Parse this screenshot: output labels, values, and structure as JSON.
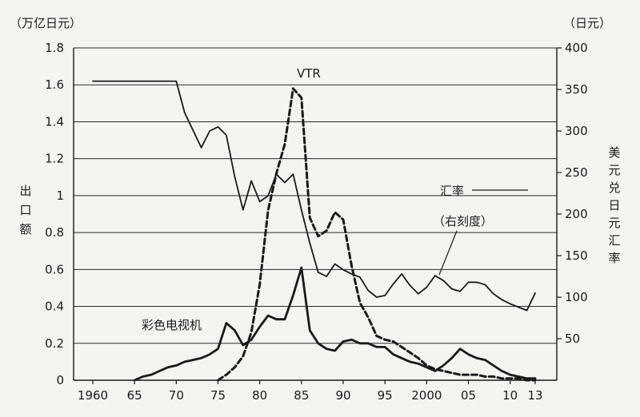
{
  "chart_data": {
    "type": "line",
    "left_unit": "（万亿日元）",
    "right_unit": "（日元）",
    "left_title": "出口额",
    "right_title": "美元兑日元汇率",
    "x_ticks": [
      "1960",
      "65",
      "70",
      "75",
      "80",
      "85",
      "90",
      "95",
      "2000",
      "05",
      "10",
      "13"
    ],
    "x_range": [
      1960,
      2013
    ],
    "left_ticks": [
      "0",
      "0.2",
      "0.4",
      "0.6",
      "0.8",
      "1",
      "1.2",
      "1.4",
      "1.6",
      "1.8"
    ],
    "left_range": [
      0,
      1.8
    ],
    "right_ticks": [
      "50",
      "100",
      "150",
      "200",
      "250",
      "300",
      "350",
      "400"
    ],
    "right_range": [
      0,
      400
    ],
    "grid": true,
    "annotations": {
      "vtr": "VTR",
      "rate": "汇率",
      "rate_scale": "（右刻度）",
      "tv": "彩色电视机"
    },
    "series": [
      {
        "name": "汇率",
        "axis": "right",
        "style": "solid",
        "color": "#1a1a1a",
        "x": [
          1960,
          1970,
          1971,
          1973,
          1974,
          1975,
          1976,
          1977,
          1978,
          1979,
          1980,
          1981,
          1982,
          1983,
          1984,
          1985,
          1986,
          1987,
          1988,
          1989,
          1990,
          1991,
          1992,
          1993,
          1994,
          1995,
          1996,
          1997,
          1998,
          1999,
          2000,
          2001,
          2002,
          2003,
          2004,
          2005,
          2006,
          2007,
          2008,
          2009,
          2010,
          2011,
          2012,
          2013
        ],
        "y": [
          360,
          360,
          322,
          280,
          300,
          305,
          295,
          245,
          205,
          240,
          215,
          222,
          248,
          238,
          248,
          205,
          165,
          130,
          125,
          140,
          133,
          128,
          124,
          108,
          100,
          102,
          116,
          128,
          114,
          104,
          112,
          126,
          120,
          110,
          107,
          118,
          118,
          115,
          104,
          97,
          92,
          88,
          84,
          105
        ]
      },
      {
        "name": "VTR",
        "axis": "left",
        "style": "dashed",
        "color": "#1a1a1a",
        "x": [
          1975,
          1976,
          1977,
          1978,
          1979,
          1980,
          1981,
          1982,
          1983,
          1984,
          1985,
          1986,
          1987,
          1988,
          1989,
          1990,
          1991,
          1992,
          1993,
          1994,
          1995,
          1996,
          1997,
          1998,
          1999,
          2000,
          2001,
          2002,
          2003,
          2004,
          2005,
          2006,
          2007,
          2008,
          2009,
          2010,
          2011,
          2012,
          2013
        ],
        "y": [
          0.0,
          0.03,
          0.07,
          0.13,
          0.26,
          0.52,
          0.92,
          1.12,
          1.28,
          1.58,
          1.53,
          0.88,
          0.78,
          0.81,
          0.91,
          0.87,
          0.62,
          0.42,
          0.34,
          0.24,
          0.22,
          0.21,
          0.18,
          0.15,
          0.12,
          0.08,
          0.06,
          0.05,
          0.04,
          0.03,
          0.03,
          0.03,
          0.02,
          0.02,
          0.01,
          0.01,
          0.01,
          0.0,
          0.0
        ]
      },
      {
        "name": "彩色电视机",
        "axis": "left",
        "style": "solid",
        "color": "#1a1a1a",
        "x": [
          1965,
          1966,
          1967,
          1968,
          1969,
          1970,
          1971,
          1972,
          1973,
          1974,
          1975,
          1976,
          1977,
          1978,
          1979,
          1980,
          1981,
          1982,
          1983,
          1984,
          1985,
          1986,
          1987,
          1988,
          1989,
          1990,
          1991,
          1992,
          1993,
          1994,
          1995,
          1996,
          1997,
          1998,
          1999,
          2000,
          2001,
          2002,
          2003,
          2004,
          2005,
          2006,
          2007,
          2008,
          2009,
          2010,
          2011,
          2012,
          2013
        ],
        "y": [
          0.0,
          0.02,
          0.03,
          0.05,
          0.07,
          0.08,
          0.1,
          0.11,
          0.12,
          0.14,
          0.17,
          0.31,
          0.27,
          0.19,
          0.22,
          0.29,
          0.35,
          0.33,
          0.33,
          0.46,
          0.61,
          0.27,
          0.2,
          0.17,
          0.16,
          0.21,
          0.22,
          0.2,
          0.2,
          0.18,
          0.18,
          0.14,
          0.12,
          0.1,
          0.09,
          0.07,
          0.05,
          0.08,
          0.12,
          0.17,
          0.14,
          0.12,
          0.11,
          0.08,
          0.05,
          0.03,
          0.02,
          0.01,
          0.01
        ]
      }
    ]
  }
}
